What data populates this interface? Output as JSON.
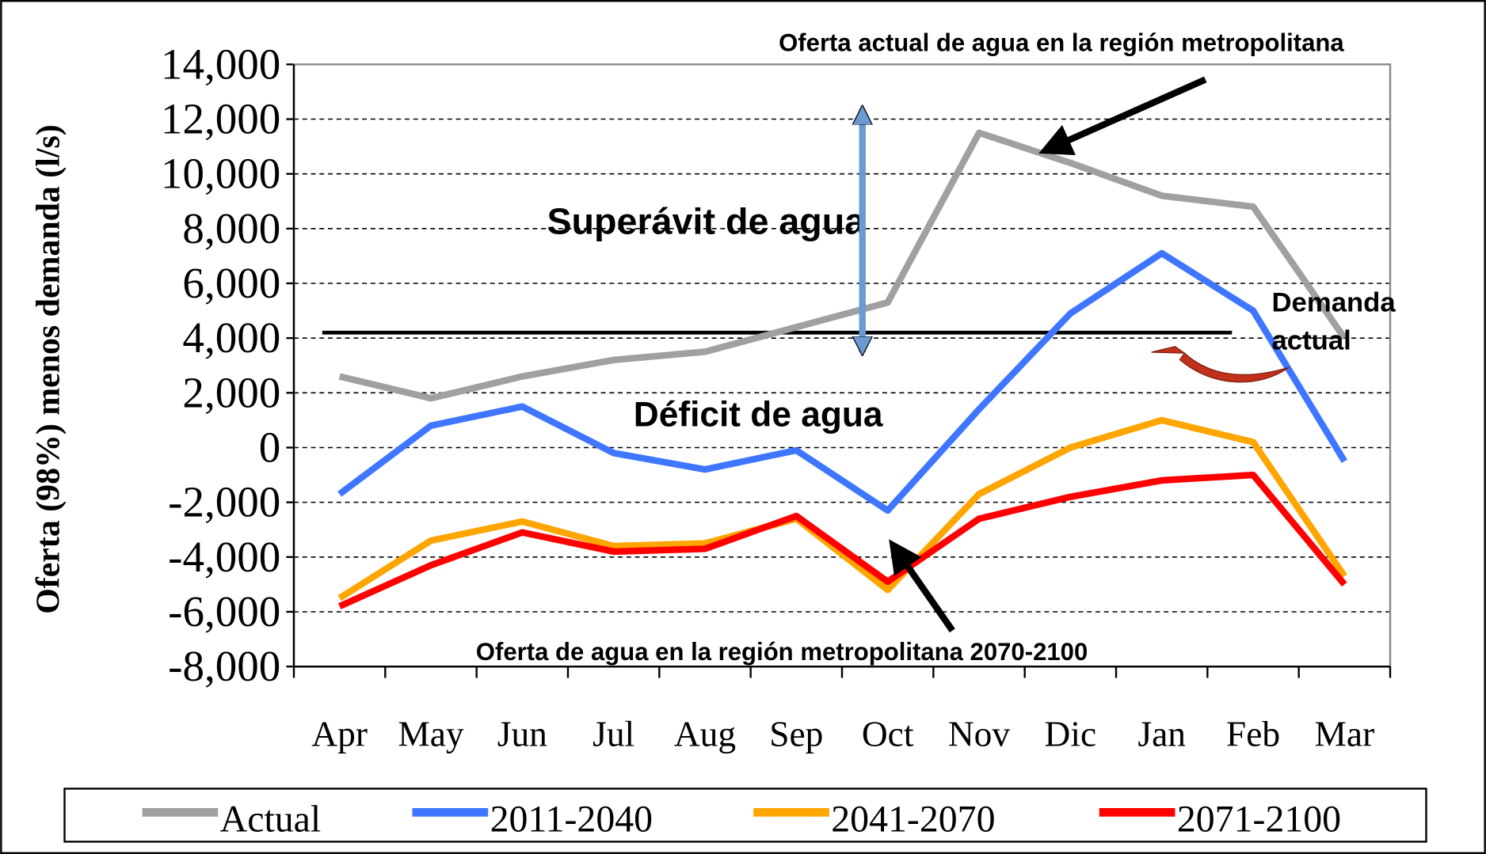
{
  "chart_data": {
    "type": "line",
    "y_label": "Oferta (98%) menos demanda (l/s)",
    "categories": [
      "Apr",
      "May",
      "Jun",
      "Jul",
      "Aug",
      "Sep",
      "Oct",
      "Nov",
      "Dic",
      "Jan",
      "Feb",
      "Mar"
    ],
    "series": [
      {
        "name": "Actual",
        "color": "#a0a0a0",
        "values": [
          2600,
          1800,
          2600,
          3200,
          3500,
          4400,
          5300,
          11500,
          10400,
          9200,
          8800,
          4000
        ]
      },
      {
        "name": "2011-2040",
        "color": "#3f76ff",
        "values": [
          -1700,
          800,
          1500,
          -200,
          -800,
          -100,
          -2300,
          1400,
          4900,
          7100,
          5000,
          -500
        ]
      },
      {
        "name": "2041-2070",
        "color": "#ffa500",
        "values": [
          -5500,
          -3400,
          -2700,
          -3600,
          -3500,
          -2600,
          -5200,
          -1700,
          0,
          1000,
          200,
          -4700
        ]
      },
      {
        "name": "2071-2100",
        "color": "#ff0000",
        "values": [
          -5800,
          -4300,
          -3100,
          -3800,
          -3700,
          -2500,
          -4900,
          -2600,
          -1800,
          -1200,
          -1000,
          -5000
        ]
      }
    ],
    "ylim": [
      -8000,
      14000
    ],
    "yticks": [
      {
        "value": -8000,
        "label": "-8,000"
      },
      {
        "value": -6000,
        "label": "-6,000"
      },
      {
        "value": -4000,
        "label": "-4,000"
      },
      {
        "value": -2000,
        "label": "-2,000"
      },
      0,
      {
        "value": 2000,
        "label": "2,000"
      },
      {
        "value": 4000,
        "label": "4,000"
      },
      {
        "value": 6000,
        "label": "6,000"
      },
      {
        "value": 8000,
        "label": "8,000"
      },
      {
        "value": 10000,
        "label": "10,000"
      },
      {
        "value": 12000,
        "label": "12,000"
      },
      {
        "value": 14000,
        "label": "14,000"
      }
    ],
    "grid": true,
    "reference_line": {
      "value": 4200,
      "label": "Demanda actual"
    },
    "annotations": [
      "Oferta actual de agua en la región metropolitana",
      "Superávit de agua",
      "Déficit de agua",
      "Oferta  de agua en la región metropolitana 2070-2100"
    ]
  }
}
